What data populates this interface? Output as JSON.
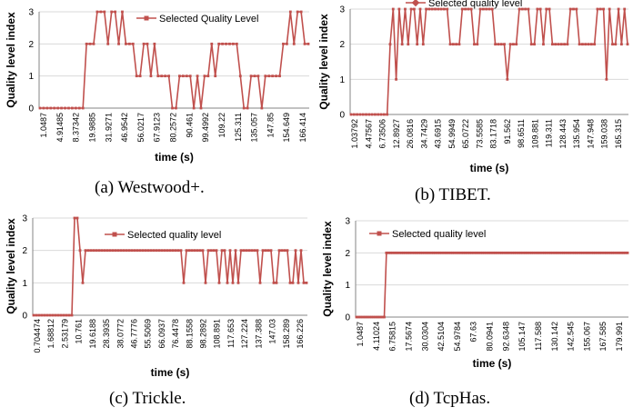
{
  "chart_data": [
    {
      "type": "line",
      "caption": "(a) Westwood+.",
      "xlabel": "time (s)",
      "ylabel": "Quality level index",
      "ylim": [
        0,
        3
      ],
      "yticks": [
        "0",
        "1",
        "2",
        "3"
      ],
      "legend": {
        "label": "Selected Quality Level",
        "placement": "top-right"
      },
      "color": "#c0504d",
      "tick_labels": [
        "1.0487",
        "4.91485",
        "8.37342",
        "19.9885",
        "31.9271",
        "46.9542",
        "56.0217",
        "67.9123",
        "80.2572",
        "90.461",
        "99.4992",
        "109.22",
        "125.311",
        "135.057",
        "147.85",
        "154.649",
        "166.414"
      ],
      "series": [
        {
          "values": [
            0,
            0,
            0,
            0,
            0,
            0,
            0,
            0,
            0,
            0,
            0,
            0,
            0,
            2,
            2,
            2,
            3,
            3,
            3,
            2,
            3,
            3,
            2,
            3,
            2,
            2,
            2,
            1,
            1,
            2,
            2,
            1,
            2,
            1,
            1,
            1,
            1,
            0,
            0,
            1,
            1,
            1,
            1,
            0,
            1,
            0,
            1,
            1,
            2,
            1,
            2,
            2,
            2,
            2,
            2,
            2,
            1,
            0,
            0,
            1,
            1,
            1,
            0,
            1,
            1,
            1,
            1,
            1,
            2,
            2,
            3,
            2,
            3,
            3,
            2,
            2
          ]
        }
      ]
    },
    {
      "type": "line",
      "caption": "(b) TIBET.",
      "xlabel": "time (s)",
      "ylabel": "Quality level index",
      "ylim": [
        0,
        3
      ],
      "yticks": [
        "0",
        "1",
        "2",
        "3"
      ],
      "legend": {
        "label": "Selected quality level",
        "placement": "top-right"
      },
      "color": "#c0504d",
      "tick_labels": [
        "1.03792",
        "4.47567",
        "6.73506",
        "12.8927",
        "26.0816",
        "34.7429",
        "43.6915",
        "54.9949",
        "65.0722",
        "73.5585",
        "83.1718",
        "91.562",
        "98.6511",
        "109.881",
        "119.311",
        "128.443",
        "135.954",
        "147.948",
        "159.038",
        "165.315"
      ],
      "series": [
        {
          "values": [
            0,
            0,
            0,
            0,
            0,
            0,
            0,
            0,
            0,
            0,
            0,
            0,
            0,
            2,
            3,
            1,
            3,
            2,
            3,
            2,
            3,
            3,
            2,
            3,
            2,
            3,
            3,
            3,
            3,
            3,
            3,
            3,
            3,
            2,
            2,
            2,
            2,
            3,
            3,
            3,
            3,
            2,
            2,
            3,
            3,
            3,
            3,
            3,
            2,
            2,
            2,
            2,
            1,
            2,
            2,
            2,
            3,
            3,
            3,
            3,
            2,
            2,
            3,
            3,
            2,
            3,
            3,
            2,
            2,
            2,
            2,
            2,
            2,
            3,
            3,
            3,
            2,
            2,
            2,
            2,
            2,
            2,
            3,
            3,
            3,
            1,
            3,
            2,
            2,
            3,
            2,
            3,
            2
          ]
        }
      ]
    },
    {
      "type": "line",
      "caption": "(c) Trickle.",
      "xlabel": "time (s)",
      "ylabel": "Quality level index",
      "ylim": [
        0,
        3
      ],
      "yticks": [
        "0",
        "1",
        "2",
        "3"
      ],
      "legend": {
        "label": "Selected quality level",
        "placement": "top-right"
      },
      "color": "#c0504d",
      "tick_labels": [
        "0.704474",
        "1.68812",
        "2.53179",
        "10.761",
        "19.6188",
        "28.3935",
        "38.0772",
        "46.7776",
        "55.5069",
        "66.0937",
        "76.4478",
        "88.1558",
        "98.2892",
        "108.891",
        "117.653",
        "127.224",
        "137.388",
        "147.03",
        "158.289",
        "166.226"
      ],
      "series": [
        {
          "values": [
            0,
            0,
            0,
            0,
            0,
            0,
            0,
            0,
            0,
            0,
            0,
            0,
            0,
            0,
            0,
            3,
            3,
            2,
            1,
            2,
            2,
            2,
            2,
            2,
            2,
            2,
            2,
            2,
            2,
            2,
            2,
            2,
            2,
            2,
            2,
            2,
            2,
            2,
            2,
            2,
            2,
            2,
            2,
            2,
            2,
            2,
            2,
            2,
            2,
            2,
            2,
            2,
            2,
            2,
            2,
            1,
            2,
            2,
            2,
            2,
            2,
            2,
            2,
            1,
            2,
            2,
            2,
            2,
            1,
            2,
            2,
            1,
            2,
            1,
            2,
            1,
            2,
            2,
            2,
            2,
            2,
            2,
            2,
            1,
            2,
            2,
            2,
            2,
            1,
            1,
            2,
            2,
            2,
            2,
            1,
            1,
            2,
            1,
            2,
            1,
            1
          ]
        }
      ]
    },
    {
      "type": "line",
      "caption": "(d) TcpHas.",
      "xlabel": "time (s)",
      "ylabel": "Quality level index",
      "ylim": [
        0,
        3
      ],
      "yticks": [
        "0",
        "1",
        "2",
        "3"
      ],
      "legend": {
        "label": "Selected quality level",
        "placement": "top-right"
      },
      "color": "#c0504d",
      "tick_labels": [
        "1.0487",
        "4.11024",
        "6.75815",
        "17.5674",
        "30.0304",
        "42.5104",
        "54.9784",
        "67.63",
        "80.0941",
        "92.6348",
        "105.147",
        "117.588",
        "130.142",
        "142.545",
        "155.067",
        "167.585",
        "179.991"
      ],
      "series": [
        {
          "values": [
            0,
            0,
            0,
            0,
            0,
            0,
            0,
            0,
            0,
            0,
            0,
            0,
            0,
            0,
            2,
            2,
            2,
            2,
            2,
            2,
            2,
            2,
            2,
            2,
            2,
            2,
            2,
            2,
            2,
            2,
            2,
            2,
            2,
            2,
            2,
            2,
            2,
            2,
            2,
            2,
            2,
            2,
            2,
            2,
            2,
            2,
            2,
            2,
            2,
            2,
            2,
            2,
            2,
            2,
            2,
            2,
            2,
            2,
            2,
            2,
            2,
            2,
            2,
            2,
            2,
            2,
            2,
            2,
            2,
            2,
            2,
            2,
            2,
            2,
            2,
            2,
            2,
            2,
            2,
            2,
            2,
            2,
            2,
            2,
            2,
            2,
            2,
            2,
            2,
            2,
            2,
            2,
            2,
            2,
            2,
            2,
            2,
            2,
            2,
            2,
            2,
            2,
            2,
            2,
            2,
            2,
            2,
            2,
            2,
            2,
            2,
            2,
            2,
            2,
            2,
            2,
            2,
            2,
            2,
            2,
            2,
            2,
            2,
            2,
            2,
            2,
            2,
            2
          ]
        }
      ]
    }
  ]
}
